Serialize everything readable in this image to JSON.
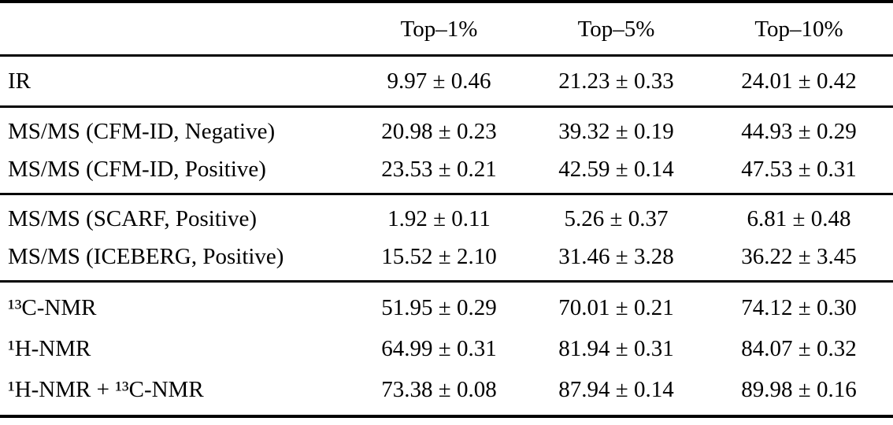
{
  "table": {
    "header": {
      "columns": [
        "Top–1%",
        "Top–5%",
        "Top–10%"
      ]
    },
    "groups": [
      {
        "rows": [
          {
            "label": "IR",
            "values": [
              "9.97 ± 0.46",
              "21.23 ± 0.33",
              "24.01 ± 0.42"
            ]
          }
        ]
      },
      {
        "rows": [
          {
            "label": "MS/MS (CFM-ID, Negative)",
            "values": [
              "20.98 ± 0.23",
              "39.32 ± 0.19",
              "44.93 ± 0.29"
            ]
          },
          {
            "label": "MS/MS (CFM-ID, Positive)",
            "values": [
              "23.53 ± 0.21",
              "42.59 ± 0.14",
              "47.53 ± 0.31"
            ]
          }
        ]
      },
      {
        "rows": [
          {
            "label": "MS/MS (SCARF, Positive)",
            "values": [
              "1.92 ± 0.11",
              "5.26 ± 0.37",
              "6.81 ± 0.48"
            ]
          },
          {
            "label": "MS/MS (ICEBERG, Positive)",
            "values": [
              "15.52 ± 2.10",
              "31.46 ± 3.28",
              "36.22 ± 3.45"
            ]
          }
        ]
      },
      {
        "rows": [
          {
            "label": "¹³C-NMR",
            "values": [
              "51.95 ± 0.29",
              "70.01 ± 0.21",
              "74.12 ± 0.30"
            ]
          },
          {
            "label": "¹H-NMR",
            "values": [
              "64.99 ± 0.31",
              "81.94 ± 0.31",
              "84.07 ± 0.32"
            ]
          },
          {
            "label": "¹H-NMR + ¹³C-NMR",
            "values": [
              "73.38 ± 0.08",
              "87.94 ± 0.14",
              "89.98 ± 0.16"
            ]
          }
        ]
      }
    ],
    "colors": {
      "background": "#ffffff",
      "text": "#000000",
      "rule": "#000000"
    }
  }
}
